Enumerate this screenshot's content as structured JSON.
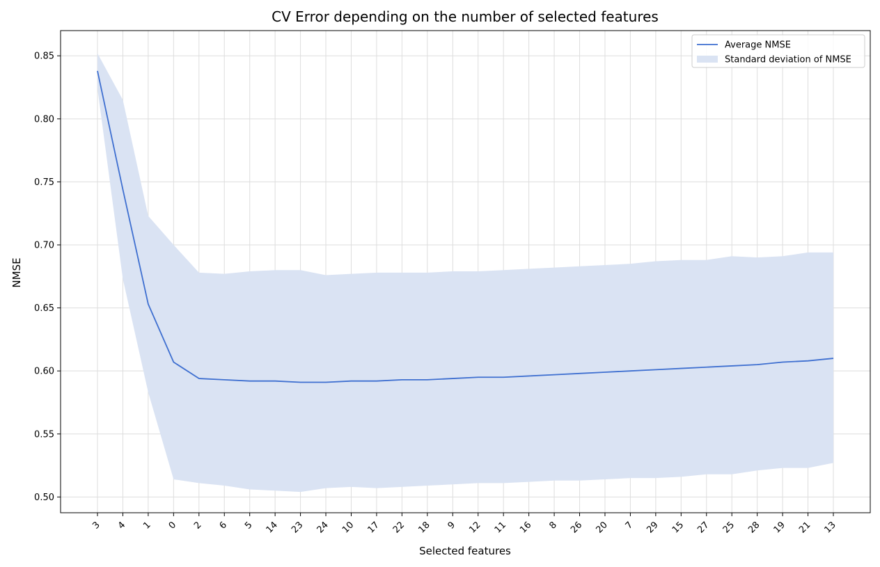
{
  "chart_data": {
    "type": "line",
    "title": "CV Error depending on the number of selected features",
    "xlabel": "Selected features",
    "ylabel": "NMSE",
    "categories": [
      "3",
      "4",
      "1",
      "0",
      "2",
      "6",
      "5",
      "14",
      "23",
      "24",
      "10",
      "17",
      "22",
      "18",
      "9",
      "12",
      "11",
      "16",
      "8",
      "26",
      "20",
      "7",
      "29",
      "15",
      "27",
      "25",
      "28",
      "19",
      "21",
      "13"
    ],
    "ylim": [
      0.4875,
      0.87
    ],
    "yticks": [
      0.5,
      0.55,
      0.6,
      0.65,
      0.7,
      0.75,
      0.8,
      0.85
    ],
    "ytick_labels": [
      "0.50",
      "0.55",
      "0.60",
      "0.65",
      "0.70",
      "0.75",
      "0.80",
      "0.85"
    ],
    "grid": true,
    "legend_position": "top-right",
    "series": [
      {
        "name": "Average NMSE",
        "kind": "line",
        "color": "#3e6fd0",
        "values": [
          0.838,
          0.744,
          0.653,
          0.607,
          0.594,
          0.593,
          0.592,
          0.592,
          0.591,
          0.591,
          0.592,
          0.592,
          0.593,
          0.593,
          0.594,
          0.595,
          0.595,
          0.596,
          0.597,
          0.598,
          0.599,
          0.6,
          0.601,
          0.602,
          0.603,
          0.604,
          0.605,
          0.607,
          0.608,
          0.61
        ]
      },
      {
        "name": "Standard deviation of NMSE",
        "kind": "band",
        "color": "#dae3f3",
        "upper": [
          0.852,
          0.815,
          0.723,
          0.7,
          0.678,
          0.677,
          0.679,
          0.68,
          0.68,
          0.676,
          0.677,
          0.678,
          0.678,
          0.678,
          0.679,
          0.679,
          0.68,
          0.681,
          0.682,
          0.683,
          0.684,
          0.685,
          0.687,
          0.688,
          0.688,
          0.691,
          0.69,
          0.691,
          0.694,
          0.694
        ],
        "lower": [
          0.824,
          0.673,
          0.583,
          0.514,
          0.511,
          0.509,
          0.506,
          0.505,
          0.504,
          0.507,
          0.508,
          0.507,
          0.508,
          0.509,
          0.51,
          0.511,
          0.511,
          0.512,
          0.513,
          0.513,
          0.514,
          0.515,
          0.515,
          0.516,
          0.518,
          0.518,
          0.521,
          0.523,
          0.523,
          0.527
        ]
      }
    ]
  }
}
